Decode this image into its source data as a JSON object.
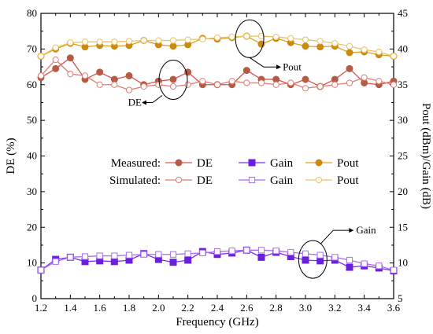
{
  "chart_data": {
    "type": "line",
    "xlabel": "Frequency (GHz)",
    "ylabel_left": "DE (%)",
    "ylabel_right": "Pout (dBm)/Gain (dB)",
    "xlim": [
      1.2,
      3.6
    ],
    "ylim_left": [
      0,
      80
    ],
    "ylim_right": [
      5,
      45
    ],
    "x_ticks": [
      "1.2",
      "1.4",
      "1.6",
      "1.8",
      "2.0",
      "2.2",
      "2.4",
      "2.6",
      "2.8",
      "3.0",
      "3.2",
      "3.4",
      "3.6"
    ],
    "y_left_ticks": [
      "0",
      "10",
      "20",
      "30",
      "40",
      "50",
      "60",
      "70",
      "80"
    ],
    "y_right_ticks": [
      "5",
      "10",
      "15",
      "20",
      "25",
      "30",
      "35",
      "40",
      "45"
    ],
    "x": [
      1.2,
      1.3,
      1.4,
      1.5,
      1.6,
      1.7,
      1.8,
      1.9,
      2.0,
      2.1,
      2.2,
      2.3,
      2.4,
      2.5,
      2.6,
      2.7,
      2.8,
      2.9,
      3.0,
      3.1,
      3.2,
      3.3,
      3.4,
      3.5,
      3.6
    ],
    "legend": {
      "row_labels": [
        "Measured:",
        "Simulated:"
      ],
      "entries": [
        "DE",
        "Gain",
        "Pout"
      ]
    },
    "series": [
      {
        "name": "DE",
        "group": "Measured",
        "axis": "left",
        "color": "#d9534f",
        "marker_color": "#b55a45",
        "marker": "circle",
        "filled": true,
        "values": [
          62.0,
          64.5,
          67.5,
          61.5,
          63.5,
          61.5,
          62.5,
          60.0,
          61.0,
          61.5,
          63.5,
          60.0,
          60.0,
          60.0,
          64.0,
          61.5,
          61.5,
          60.0,
          61.5,
          59.5,
          61.5,
          64.5,
          60.5,
          60.0,
          61.0
        ]
      },
      {
        "name": "DE",
        "group": "Simulated",
        "axis": "left",
        "color": "#e07a70",
        "marker": "circle",
        "filled": false,
        "values": [
          62.5,
          67.0,
          63.0,
          62.5,
          60.0,
          60.0,
          58.5,
          59.5,
          60.0,
          59.5,
          60.0,
          61.0,
          60.0,
          61.0,
          60.5,
          60.5,
          60.0,
          60.5,
          59.0,
          59.5,
          60.0,
          60.5,
          62.0,
          61.0,
          60.0
        ]
      },
      {
        "name": "Gain",
        "group": "Measured",
        "axis": "right",
        "color": "#7b2ff7",
        "marker_color": "#6a1fe0",
        "marker": "square",
        "filled": true,
        "values": [
          9.0,
          10.5,
          10.8,
          10.2,
          10.3,
          10.2,
          10.4,
          11.3,
          10.5,
          10.1,
          10.4,
          11.6,
          11.2,
          11.4,
          11.8,
          10.8,
          11.5,
          10.9,
          10.4,
          10.3,
          10.4,
          9.4,
          9.6,
          9.3,
          8.9
        ]
      },
      {
        "name": "Gain",
        "group": "Simulated",
        "axis": "right",
        "color": "#a96cf0",
        "marker": "square",
        "filled": false,
        "values": [
          9.0,
          10.2,
          10.8,
          10.9,
          11.0,
          11.0,
          11.1,
          11.2,
          11.2,
          11.2,
          11.3,
          11.4,
          11.6,
          11.7,
          11.8,
          11.8,
          11.7,
          11.5,
          11.3,
          11.1,
          10.8,
          10.4,
          9.9,
          9.6,
          9.0
        ]
      },
      {
        "name": "Pout",
        "group": "Measured",
        "axis": "right",
        "color": "#e0a020",
        "marker_color": "#c98a10",
        "marker": "circle",
        "filled": true,
        "values": [
          39.0,
          40.0,
          40.8,
          40.3,
          40.5,
          40.4,
          40.5,
          41.2,
          40.6,
          40.4,
          40.6,
          41.5,
          41.4,
          41.6,
          41.8,
          40.7,
          41.5,
          40.9,
          40.4,
          40.3,
          40.4,
          39.5,
          39.6,
          39.2,
          39.0
        ]
      },
      {
        "name": "Pout",
        "group": "Simulated",
        "axis": "right",
        "color": "#f0c060",
        "marker": "circle",
        "filled": false,
        "values": [
          39.0,
          40.2,
          40.9,
          41.0,
          41.0,
          41.0,
          41.1,
          41.2,
          41.2,
          41.2,
          41.3,
          41.4,
          41.6,
          41.7,
          41.8,
          41.8,
          41.7,
          41.5,
          41.3,
          41.1,
          40.8,
          40.4,
          39.9,
          39.6,
          39.0
        ]
      }
    ],
    "annotations": [
      {
        "text": "Pout",
        "target_x": 2.62,
        "target_y_left": 72.0
      },
      {
        "text": "DE",
        "target_x": 2.1,
        "target_y_left": 60.5
      },
      {
        "text": "Gain",
        "target_x": 3.05,
        "target_y_left": 11.0
      }
    ],
    "grid": false
  }
}
